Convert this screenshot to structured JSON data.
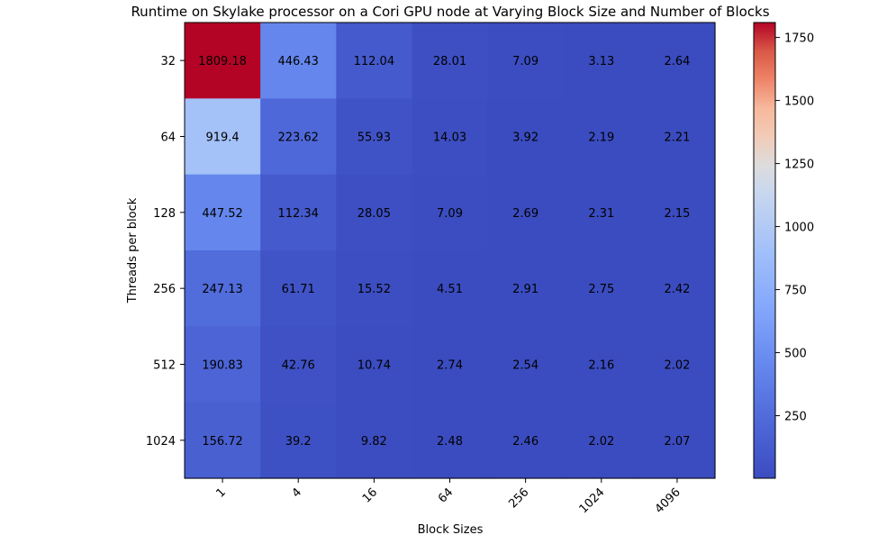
{
  "chart_data": {
    "type": "heatmap",
    "title": "Runtime on Skylake processor on a Cori GPU node at Varying Block Size and Number of Blocks",
    "xlabel": "Block Sizes",
    "ylabel": "Threads per block",
    "x_categories": [
      "1",
      "4",
      "16",
      "64",
      "256",
      "1024",
      "4096"
    ],
    "y_categories": [
      "32",
      "64",
      "128",
      "256",
      "512",
      "1024"
    ],
    "values": [
      [
        1809.18,
        446.43,
        112.04,
        28.01,
        7.09,
        3.13,
        2.64
      ],
      [
        919.4,
        223.62,
        55.93,
        14.03,
        3.92,
        2.19,
        2.21
      ],
      [
        447.52,
        112.34,
        28.05,
        7.09,
        2.69,
        2.31,
        2.15
      ],
      [
        247.13,
        61.71,
        15.52,
        4.51,
        2.91,
        2.75,
        2.42
      ],
      [
        190.83,
        42.76,
        10.74,
        2.74,
        2.54,
        2.16,
        2.02
      ],
      [
        156.72,
        39.2,
        9.82,
        2.48,
        2.46,
        2.02,
        2.07
      ]
    ],
    "colormap": "coolwarm",
    "color_range": [
      2.02,
      1809.18
    ],
    "colorbar_ticks": [
      "250",
      "500",
      "750",
      "1000",
      "1250",
      "1500",
      "1750"
    ],
    "colorbar_tick_values": [
      250,
      500,
      750,
      1000,
      1250,
      1500,
      1750
    ],
    "x_tick_rotation": 45,
    "grid": false
  }
}
